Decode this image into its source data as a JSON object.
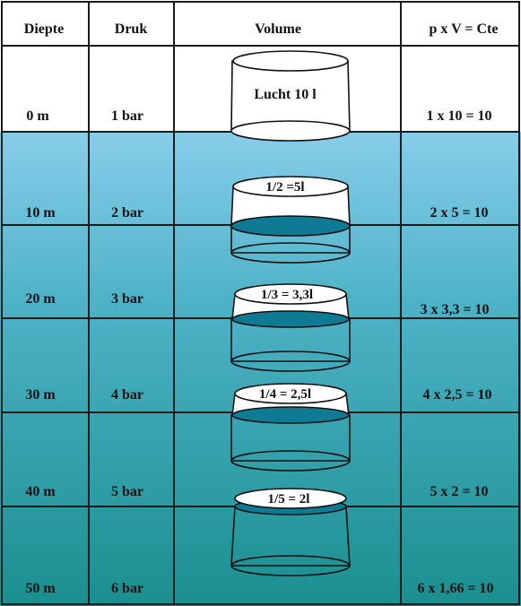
{
  "headers": {
    "depth": "Diepte",
    "pressure": "Druk",
    "volume": "Volume",
    "formula": "p x V = Cte"
  },
  "rows": [
    {
      "depth": "0 m",
      "pressure": "1 bar",
      "volume_label": "Lucht 10 l",
      "formula": "1 x 10 = 10",
      "air_fraction": 1
    },
    {
      "depth": "10 m",
      "pressure": "2 bar",
      "volume_label": "1/2 =5l",
      "formula": "2 x 5 = 10",
      "air_fraction": 0.5
    },
    {
      "depth": "20 m",
      "pressure": "3 bar",
      "volume_label": "1/3 = 3,3l",
      "formula": "3 x 3,3 = 10",
      "air_fraction": 0.3333
    },
    {
      "depth": "30 m",
      "pressure": "4 bar",
      "volume_label": "1/4 = 2,5l",
      "formula": "4 x 2,5 = 10",
      "air_fraction": 0.25
    },
    {
      "depth": "40 m",
      "pressure": "5 bar",
      "volume_label": "1/5 = 2l",
      "formula": "5 x 2 = 10",
      "air_fraction": 0.2
    },
    {
      "depth": "50 m",
      "pressure": "6 bar",
      "volume_label": "",
      "formula": "6 x 1,66 = 10",
      "air_fraction": 0.1667
    }
  ],
  "colors": {
    "water_top": "#87cdea",
    "water_bottom": "#1a8f8f",
    "water_in_bell": "#0e7a94",
    "grid": "#1a1a1a"
  }
}
